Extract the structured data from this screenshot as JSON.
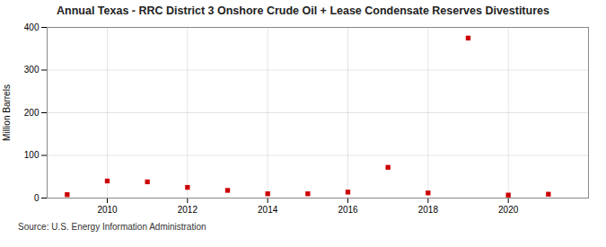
{
  "chart_data": {
    "type": "scatter",
    "title": "Annual Texas - RRC District 3 Onshore Crude Oil + Lease Condensate Reserves Divestitures",
    "ylabel": "Million Barrels",
    "source": "Source: U.S. Energy Information Administration",
    "x": [
      2009,
      2010,
      2011,
      2012,
      2013,
      2014,
      2015,
      2016,
      2017,
      2018,
      2019,
      2020,
      2021
    ],
    "values": [
      8,
      40,
      38,
      25,
      18,
      10,
      10,
      14,
      72,
      12,
      375,
      7,
      9
    ],
    "color": "#cc0000",
    "marker": "square",
    "xlim": [
      2008.5,
      2022.0
    ],
    "xticks": [
      2010,
      2012,
      2014,
      2016,
      2018,
      2020
    ],
    "ylim": [
      0,
      400
    ],
    "yticks": [
      0,
      100,
      200,
      300,
      400
    ],
    "grid": true
  }
}
